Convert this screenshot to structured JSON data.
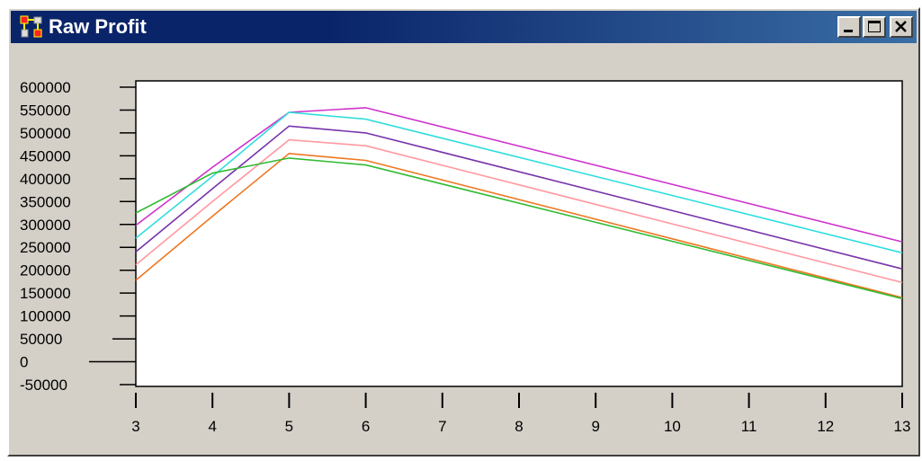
{
  "window": {
    "title": "Raw Profit",
    "icon": "chart-app-icon",
    "controls": {
      "minimize": "minimize-icon",
      "maximize": "maximize-icon",
      "close": "close-icon"
    }
  },
  "chart_data": {
    "type": "line",
    "title": "",
    "xlabel": "",
    "ylabel": "",
    "xlim": [
      3,
      13
    ],
    "ylim": [
      -50000,
      600000
    ],
    "x_ticks": [
      "3",
      "4",
      "5",
      "6",
      "7",
      "8",
      "9",
      "10",
      "11",
      "12",
      "13"
    ],
    "y_ticks": [
      "600000",
      "550000",
      "500000",
      "450000",
      "400000",
      "350000",
      "300000",
      "250000",
      "200000",
      "150000",
      "100000",
      "50000",
      "0",
      "-50000"
    ],
    "grid": false,
    "legend": "none",
    "series": [
      {
        "color": "#cc33cc",
        "x": [
          3,
          4,
          5,
          6,
          13
        ],
        "y": [
          298000,
          425000,
          545000,
          555000,
          262000
        ]
      },
      {
        "color": "#33dddd",
        "x": [
          3,
          4,
          5,
          6,
          13
        ],
        "y": [
          270000,
          405000,
          545000,
          530000,
          238000
        ]
      },
      {
        "color": "#7733aa",
        "x": [
          3,
          4,
          5,
          6,
          13
        ],
        "y": [
          240000,
          378000,
          515000,
          500000,
          203000
        ]
      },
      {
        "color": "#ff99a0",
        "x": [
          3,
          4,
          5,
          6,
          13
        ],
        "y": [
          212000,
          350000,
          485000,
          472000,
          173000
        ]
      },
      {
        "color": "#ee7722",
        "x": [
          3,
          4,
          5,
          6,
          13
        ],
        "y": [
          178000,
          318000,
          455000,
          440000,
          140000
        ]
      },
      {
        "color": "#33bb33",
        "x": [
          3,
          4,
          5,
          6,
          13
        ],
        "y": [
          325000,
          412000,
          445000,
          430000,
          138000
        ]
      }
    ]
  }
}
